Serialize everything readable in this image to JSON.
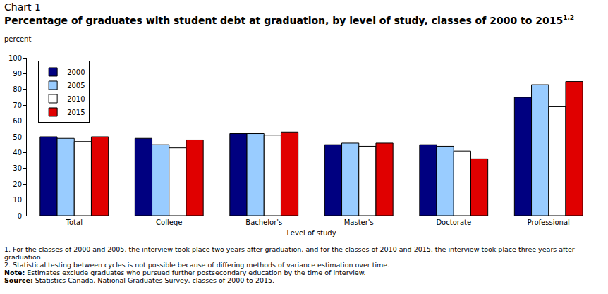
{
  "chart_data": {
    "type": "bar",
    "chart_number": "Chart 1",
    "title": "Percentage of graduates with student debt at graduation, by level of study, classes of 2000 to 2015",
    "title_note_refs": "1,2",
    "y_label": "percent",
    "x_label": "Level of study",
    "categories": [
      "Total",
      "College",
      "Bachelor's",
      "Master's",
      "Doctorate",
      "Professional"
    ],
    "series": [
      {
        "name": "2000",
        "color": "#000080",
        "values": [
          50,
          49,
          52,
          45,
          45,
          75
        ]
      },
      {
        "name": "2005",
        "color": "#99ccff",
        "values": [
          49,
          45,
          52,
          46,
          44,
          83
        ]
      },
      {
        "name": "2010",
        "color": "#ffffff",
        "values": [
          47,
          43,
          51,
          44,
          41,
          69
        ]
      },
      {
        "name": "2015",
        "color": "#e00000",
        "values": [
          50,
          48,
          53,
          46,
          36,
          85
        ]
      }
    ],
    "ylim": [
      0,
      100
    ],
    "yticks": [
      0,
      10,
      20,
      30,
      40,
      50,
      60,
      70,
      80,
      90,
      100
    ],
    "grid": false,
    "legend": "top-left",
    "annotations": [
      {
        "label": "1.",
        "text": "For the classes of 2000 and 2005, the interview took place two years after graduation, and for the classes of 2010 and 2015, the interview took place three years after graduation."
      },
      {
        "label": "2.",
        "text": "Statistical testing between cycles is not possible because of differing methods of variance estimation over time."
      },
      {
        "label": "Note:",
        "text": "Estimates exclude graduates who pursued further postsecondary education by the time of interview."
      },
      {
        "label": "Source:",
        "text": "Statistics Canada, National Graduates Survey, classes of 2000 to 2015."
      }
    ]
  }
}
